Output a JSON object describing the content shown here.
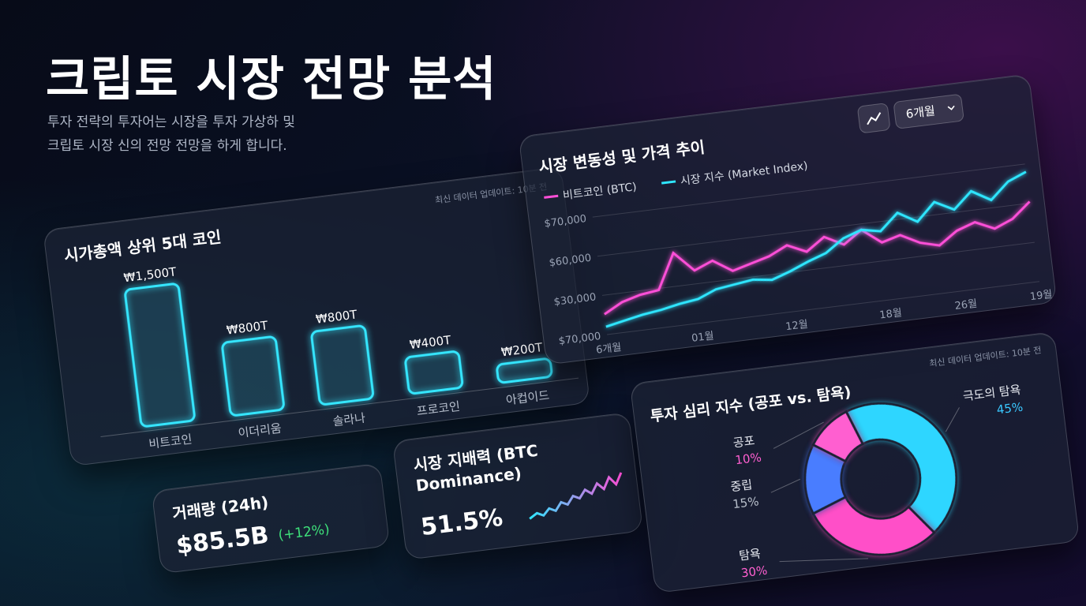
{
  "header": {
    "title": "크립토 시장 전망 분석",
    "subtitle_lines": [
      "투자 전략의 투자어는 시장을 투자 가상하 및",
      "크립토 시장 신의 전망 전망을 하게 합니다."
    ]
  },
  "chart_data": [
    {
      "type": "bar",
      "title": "시가총액 상위 5대 코인",
      "note": "최신 데이터 업데이트: 10분 전",
      "categories": [
        "비트코인",
        "이더리움",
        "솔라나",
        "프로코인",
        "아컵이드"
      ],
      "values": [
        1500,
        800,
        800,
        400,
        200
      ],
      "value_labels": [
        "₩1,500T",
        "₩800T",
        "₩800T",
        "₩400T",
        "₩200T"
      ],
      "color": "#35e6ff"
    },
    {
      "type": "line",
      "title": "시장 변동성 및 가격 추이",
      "period": "6개월",
      "categories": [
        "6개월",
        null,
        null,
        null,
        null,
        "01월",
        null,
        null,
        null,
        null,
        "12월",
        null,
        null,
        null,
        null,
        "18월",
        null,
        null,
        null,
        "26월",
        null,
        null,
        null,
        "19월"
      ],
      "y_labels": [
        "$70,000",
        "$60,000",
        "$30,000",
        "$70,000"
      ],
      "grid": true,
      "series": [
        {
          "name": "비트코인 (BTC)",
          "color": "#ff4fd8",
          "values": [
            20,
            28,
            32,
            34,
            62,
            46,
            52,
            42,
            46,
            50,
            57,
            50,
            60,
            52,
            62,
            50,
            54,
            46,
            42,
            52,
            57,
            50,
            56,
            68
          ]
        },
        {
          "name": "시장 지수 (Market Index)",
          "color": "#2fe6ff",
          "values": [
            10,
            13,
            16,
            18,
            21,
            23,
            29,
            31,
            33,
            31,
            36,
            42,
            47,
            57,
            62,
            59,
            72,
            63,
            77,
            69,
            82,
            73,
            86,
            92
          ]
        }
      ]
    },
    {
      "type": "pie",
      "title": "투자 심리 지수 (공포 vs. 탐욕)",
      "note": "최신 데이터 업데이트: 10분 전",
      "categories": [
        "극도의 탐욕",
        "탐욕",
        "중립",
        "공포"
      ],
      "values": [
        45,
        30,
        15,
        10
      ],
      "value_labels": [
        "45%",
        "30%",
        "15%",
        "10%"
      ],
      "colors": [
        "#2fd6ff",
        "#ff4fc8",
        "#4a7dff",
        "#ff5fd0"
      ],
      "label_colors": [
        "#3ac8ff",
        "#ff5fd0",
        "#b9c0cc",
        "#ff5fd0"
      ]
    }
  ],
  "kpis": [
    {
      "title_lines": [
        "거래량 (24h)"
      ],
      "value": "$85.5B",
      "change": "(+12%)"
    },
    {
      "title_lines": [
        "시장 지배력 (BTC",
        "Dominance)"
      ],
      "value": "51.5%"
    }
  ]
}
